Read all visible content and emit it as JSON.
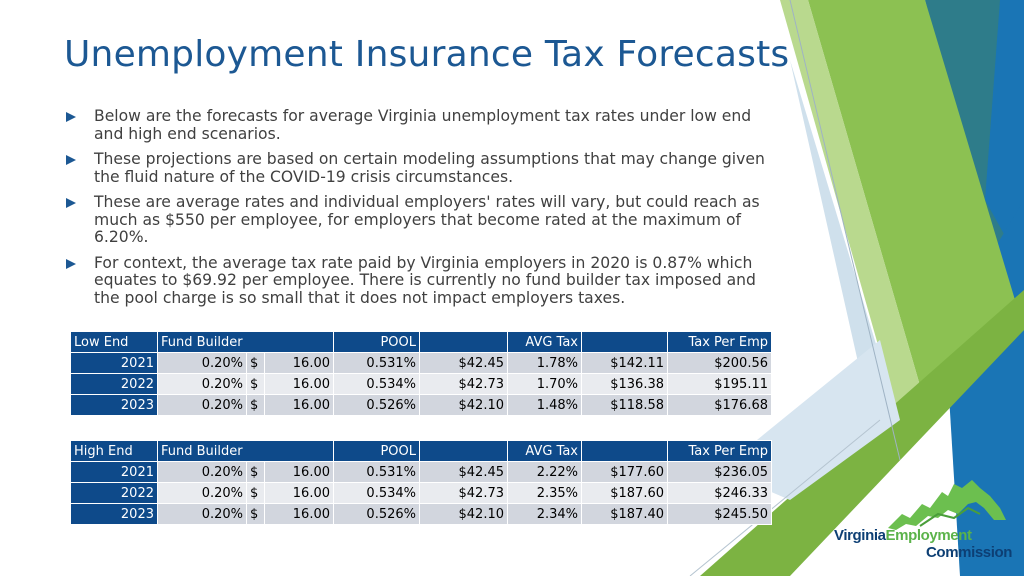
{
  "title": "Unemployment Insurance Tax Forecasts",
  "bullets": [
    "Below are the forecasts for average Virginia unemployment tax rates under low end and high end scenarios.",
    "These projections are based on certain modeling assumptions that may change given the fluid nature of the COVID-19 crisis circumstances.",
    "These are average rates and individual employers' rates will vary, but could reach as much as $550 per employee, for employers that become rated at the maximum of 6.20%.",
    "For context, the average tax rate paid by Virginia employers in 2020 is 0.87% which equates to $69.92 per employee.  There is currently no fund builder tax imposed and the pool charge is so small that it does not impact employers taxes."
  ],
  "tables": [
    {
      "headers": [
        "Low End",
        "Fund Builder",
        "",
        "POOL",
        "",
        "AVG Tax",
        "",
        "Tax Per Emp"
      ],
      "rows": [
        [
          "2021",
          "0.20%",
          "$",
          "16.00",
          "0.531%",
          "$42.45",
          "1.78%",
          "$142.11",
          "$200.56"
        ],
        [
          "2022",
          "0.20%",
          "$",
          "16.00",
          "0.534%",
          "$42.73",
          "1.70%",
          "$136.38",
          "$195.11"
        ],
        [
          "2023",
          "0.20%",
          "$",
          "16.00",
          "0.526%",
          "$42.10",
          "1.48%",
          "$118.58",
          "$176.68"
        ]
      ]
    },
    {
      "headers": [
        "High End",
        "Fund Builder",
        "",
        "POOL",
        "",
        "AVG Tax",
        "",
        "Tax Per Emp"
      ],
      "rows": [
        [
          "2021",
          "0.20%",
          "$",
          "16.00",
          "0.531%",
          "$42.45",
          "2.22%",
          "$177.60",
          "$236.05"
        ],
        [
          "2022",
          "0.20%",
          "$",
          "16.00",
          "0.534%",
          "$42.73",
          "2.35%",
          "$187.60",
          "$246.33"
        ],
        [
          "2023",
          "0.20%",
          "$",
          "16.00",
          "0.526%",
          "$42.10",
          "2.34%",
          "$187.40",
          "$245.50"
        ]
      ]
    }
  ],
  "logo": {
    "line1a": "Virginia",
    "line1b": "Employment",
    "line2": "Commission"
  },
  "colors": {
    "title": "#1c5893",
    "table_header": "#0e4a8a",
    "row_dark": "#d2d6de",
    "row_light": "#e9ebef",
    "green": "#8cc152",
    "teal": "#2e7c8a",
    "blue": "#1a75b5"
  }
}
